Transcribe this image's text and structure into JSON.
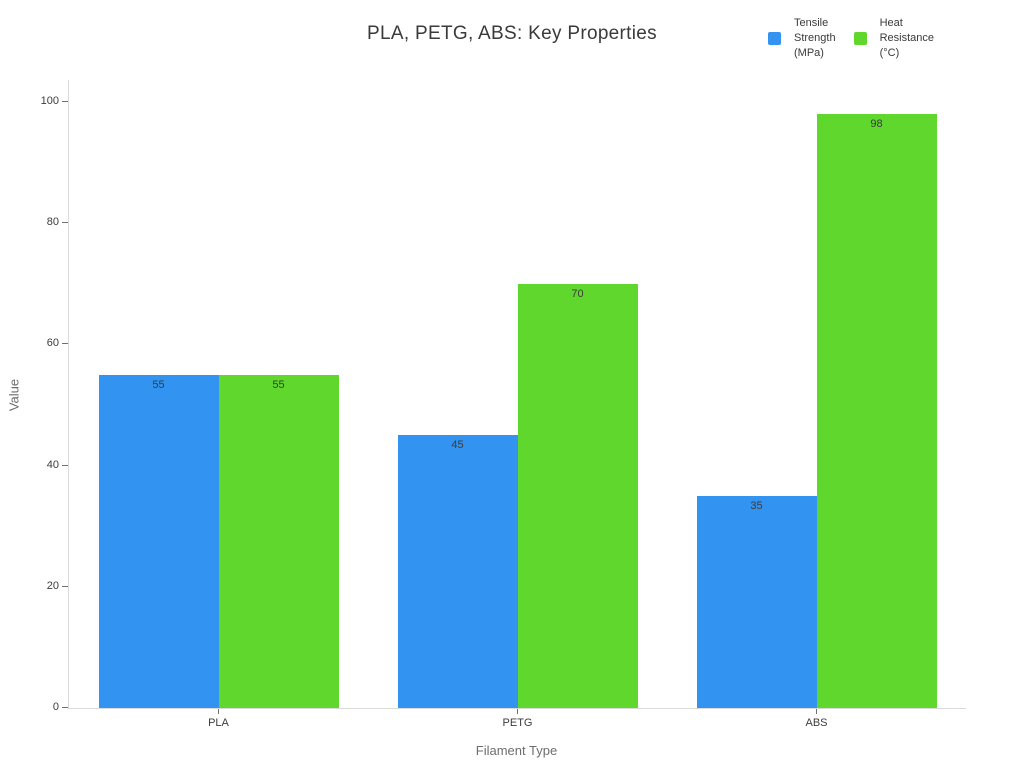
{
  "legend": {
    "items": [
      {
        "label": "Tensile\nStrength\n(MPa)",
        "color": "#3294F0"
      },
      {
        "label": "Heat\nResistance\n(°C)",
        "color": "#5FD72C"
      }
    ]
  },
  "chart_data": {
    "type": "bar",
    "title": "PLA, PETG, ABS: Key Properties",
    "categories": [
      "PLA",
      "PETG",
      "ABS"
    ],
    "series": [
      {
        "name": "Tensile Strength (MPa)",
        "color": "#3294F0",
        "values": [
          55,
          45,
          35
        ]
      },
      {
        "name": "Heat Resistance (°C)",
        "color": "#5FD72C",
        "values": [
          55,
          70,
          98
        ]
      }
    ],
    "xlabel": "Filament Type",
    "ylabel": "Value",
    "ylim": [
      0,
      100
    ],
    "yticks": [
      0,
      20,
      40,
      60,
      80,
      100
    ],
    "grid": false,
    "bar_value_labels": true,
    "legend_position": "top-right"
  }
}
